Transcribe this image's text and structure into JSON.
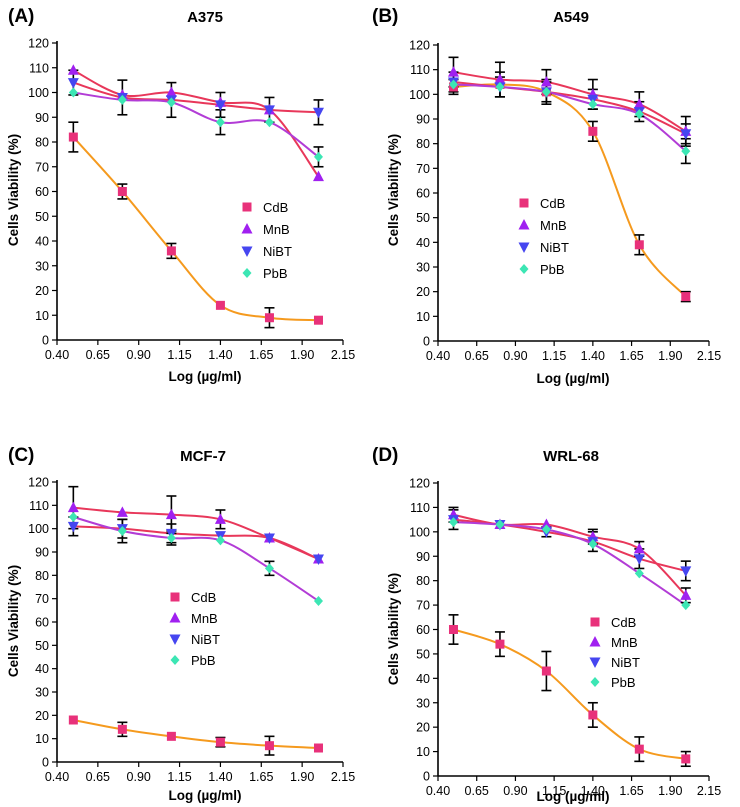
{
  "figure": {
    "x_ticks": [
      "0.40",
      "0.65",
      "0.90",
      "1.15",
      "1.40",
      "1.65",
      "1.90",
      "2.15"
    ],
    "colors": {
      "CdB_marker": "#e8317a",
      "MnB_marker": "#a020f0",
      "NiBT_marker": "#4646f0",
      "PbB_marker": "#3ce6b4",
      "CdB_curve": "#f59a1e",
      "other_curves": "#e8375a",
      "PbB_curve": "#b23cd6",
      "error_bar": "#000000",
      "axis": "#000000"
    }
  },
  "chart_data": [
    {
      "type": "scatter",
      "panel_label": "(A)",
      "title": "A375",
      "xlabel": "Log (µg/ml)",
      "ylabel": "Cells Viability (%)",
      "xlim": [
        0.4,
        2.15
      ],
      "ylim": [
        0,
        120
      ],
      "y_ticks": [
        "0",
        "10",
        "20",
        "30",
        "40",
        "50",
        "60",
        "70",
        "80",
        "90",
        "100",
        "110",
        "120"
      ],
      "legend_position": "center-right",
      "series": [
        {
          "name": "CdB",
          "x": [
            0.5,
            0.8,
            1.1,
            1.4,
            1.7,
            2.0
          ],
          "y": [
            82,
            60,
            36,
            14,
            9,
            8
          ],
          "err": [
            6,
            3,
            3,
            0,
            4,
            0
          ]
        },
        {
          "name": "MnB",
          "x": [
            0.5,
            0.8,
            1.1,
            1.4,
            1.7,
            2.0
          ],
          "y": [
            109,
            99,
            100,
            96,
            93,
            66
          ],
          "err": [
            0,
            0,
            0,
            0,
            0,
            0
          ]
        },
        {
          "name": "NiBT",
          "x": [
            0.5,
            0.8,
            1.1,
            1.4,
            1.7,
            2.0
          ],
          "y": [
            104,
            98,
            97,
            95,
            93,
            92
          ],
          "err": [
            5,
            7,
            7,
            5,
            5,
            5
          ]
        },
        {
          "name": "PbB",
          "x": [
            0.5,
            0.8,
            1.1,
            1.4,
            1.7,
            2.0
          ],
          "y": [
            100,
            97,
            96,
            88,
            88,
            74
          ],
          "err": [
            0,
            0,
            0,
            5,
            0,
            4
          ]
        }
      ]
    },
    {
      "type": "scatter",
      "panel_label": "(B)",
      "title": "A549",
      "xlabel": "Log (µg/ml)",
      "ylabel": "Cells Viability (%)",
      "xlim": [
        0.4,
        2.15
      ],
      "ylim": [
        0,
        120
      ],
      "y_ticks": [
        "0",
        "10",
        "20",
        "30",
        "40",
        "50",
        "60",
        "70",
        "80",
        "90",
        "100",
        "110",
        "120"
      ],
      "legend_position": "center",
      "series": [
        {
          "name": "CdB",
          "x": [
            0.5,
            0.8,
            1.1,
            1.4,
            1.7,
            2.0
          ],
          "y": [
            103,
            104,
            101,
            85,
            39,
            18
          ],
          "err": [
            3,
            5,
            5,
            4,
            4,
            2
          ]
        },
        {
          "name": "MnB",
          "x": [
            0.5,
            0.8,
            1.1,
            1.4,
            1.7,
            2.0
          ],
          "y": [
            109,
            106,
            105,
            100,
            96,
            85
          ],
          "err": [
            6,
            7,
            5,
            6,
            5,
            6
          ]
        },
        {
          "name": "NiBT",
          "x": [
            0.5,
            0.8,
            1.1,
            1.4,
            1.7,
            2.0
          ],
          "y": [
            105,
            103,
            101,
            98,
            93,
            84
          ],
          "err": [
            4,
            4,
            4,
            4,
            4,
            4
          ]
        },
        {
          "name": "PbB",
          "x": [
            0.5,
            0.8,
            1.1,
            1.4,
            1.7,
            2.0
          ],
          "y": [
            104,
            103,
            101,
            96,
            92,
            77
          ],
          "err": [
            0,
            0,
            0,
            0,
            0,
            5
          ]
        }
      ]
    },
    {
      "type": "scatter",
      "panel_label": "(C)",
      "title": "MCF-7",
      "xlabel": "Log (µg/ml)",
      "ylabel": "Cells Viability (%)",
      "xlim": [
        0.4,
        2.15
      ],
      "ylim": [
        0,
        120
      ],
      "y_ticks": [
        "0",
        "10",
        "20",
        "30",
        "40",
        "50",
        "60",
        "70",
        "80",
        "90",
        "100",
        "110",
        "120"
      ],
      "legend_position": "center-left",
      "series": [
        {
          "name": "CdB",
          "x": [
            0.5,
            0.8,
            1.1,
            1.4,
            1.7,
            2.0
          ],
          "y": [
            18,
            14,
            11,
            8.5,
            7,
            6
          ],
          "err": [
            0,
            3,
            0,
            2,
            4,
            0
          ]
        },
        {
          "name": "MnB",
          "x": [
            0.5,
            0.8,
            1.1,
            1.4,
            1.7,
            2.0
          ],
          "y": [
            109,
            107,
            106,
            104,
            96,
            87
          ],
          "err": [
            9,
            0,
            8,
            4,
            0,
            0
          ]
        },
        {
          "name": "NiBT",
          "x": [
            0.5,
            0.8,
            1.1,
            1.4,
            1.7,
            2.0
          ],
          "y": [
            101,
            100,
            98,
            97,
            96,
            87
          ],
          "err": [
            4,
            4,
            4,
            0,
            0,
            0
          ]
        },
        {
          "name": "PbB",
          "x": [
            0.5,
            0.8,
            1.1,
            1.4,
            1.7,
            2.0
          ],
          "y": [
            105,
            99,
            96,
            95,
            83,
            69
          ],
          "err": [
            0,
            5,
            3,
            0,
            3,
            0
          ]
        }
      ]
    },
    {
      "type": "scatter",
      "panel_label": "(D)",
      "title": "WRL-68",
      "xlabel": "Log (µg/ml)",
      "ylabel": "Cells Viability (%)",
      "xlim": [
        0.4,
        2.15
      ],
      "ylim": [
        0,
        120
      ],
      "y_ticks": [
        "0",
        "10",
        "20",
        "30",
        "40",
        "50",
        "60",
        "70",
        "80",
        "90",
        "100",
        "110",
        "120"
      ],
      "legend_position": "center-right",
      "series": [
        {
          "name": "CdB",
          "x": [
            0.5,
            0.8,
            1.1,
            1.4,
            1.7,
            2.0
          ],
          "y": [
            60,
            54,
            43,
            25,
            11,
            7
          ],
          "err": [
            6,
            5,
            8,
            5,
            5,
            3
          ]
        },
        {
          "name": "MnB",
          "x": [
            0.5,
            0.8,
            1.1,
            1.4,
            1.7,
            2.0
          ],
          "y": [
            107,
            103,
            103,
            98,
            93,
            74
          ],
          "err": [
            3,
            0,
            0,
            3,
            3,
            3
          ]
        },
        {
          "name": "NiBT",
          "x": [
            0.5,
            0.8,
            1.1,
            1.4,
            1.7,
            2.0
          ],
          "y": [
            105,
            103,
            100,
            96,
            89,
            84
          ],
          "err": [
            4,
            0,
            2,
            4,
            4,
            4
          ]
        },
        {
          "name": "PbB",
          "x": [
            0.5,
            0.8,
            1.1,
            1.4,
            1.7,
            2.0
          ],
          "y": [
            104,
            103,
            101,
            95,
            83,
            70
          ],
          "err": [
            0,
            0,
            0,
            0,
            0,
            0
          ]
        }
      ]
    }
  ]
}
